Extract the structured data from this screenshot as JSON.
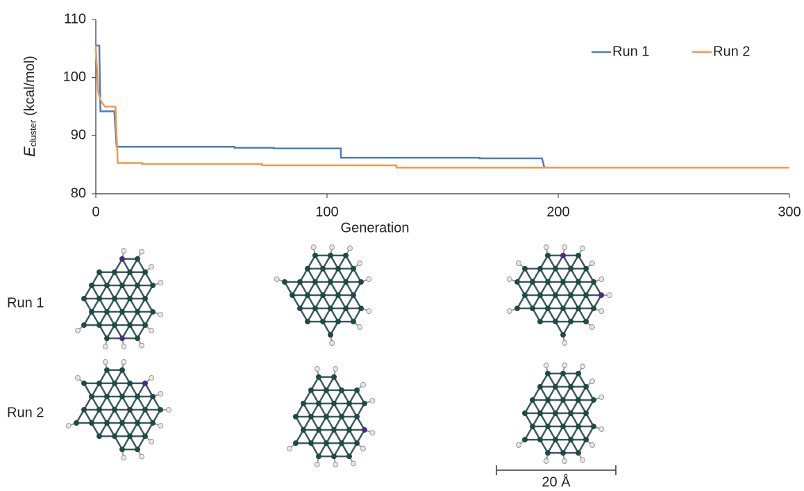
{
  "chart_data": {
    "type": "line",
    "x_label": "Generation",
    "y_label": {
      "symbol": "E",
      "subscript": "cluster",
      "unit": "(kcal/mol)"
    },
    "xlim": [
      0,
      300
    ],
    "xticks": [
      0,
      100,
      200,
      300
    ],
    "ylim": [
      80,
      110
    ],
    "yticks": [
      80,
      90,
      100,
      110
    ],
    "grid": false,
    "legend": "top-right",
    "series": [
      {
        "name": "Run 1",
        "color": "#4a7ebb",
        "x": [
          0,
          1.5,
          2,
          8,
          9,
          60,
          60,
          77,
          77,
          106,
          106,
          166,
          166,
          193,
          194
        ],
        "values": [
          105.5,
          105.5,
          94.2,
          94.2,
          88.1,
          88.1,
          87.9,
          87.9,
          87.8,
          87.8,
          86.2,
          86.2,
          86.1,
          86.1,
          84.5
        ]
      },
      {
        "name": "Run 2",
        "color": "#f39a4a",
        "x": [
          0,
          1,
          2,
          3,
          4,
          8.5,
          9.5,
          20,
          20,
          72,
          72,
          130,
          130,
          300
        ],
        "values": [
          105.5,
          97.5,
          96.2,
          95.5,
          95,
          95,
          85.3,
          85.3,
          85.1,
          85.1,
          84.9,
          84.9,
          84.5,
          84.5
        ]
      }
    ]
  },
  "row_labels": [
    "Run 1",
    "Run 2"
  ],
  "scale_bar_label": "20 Å"
}
